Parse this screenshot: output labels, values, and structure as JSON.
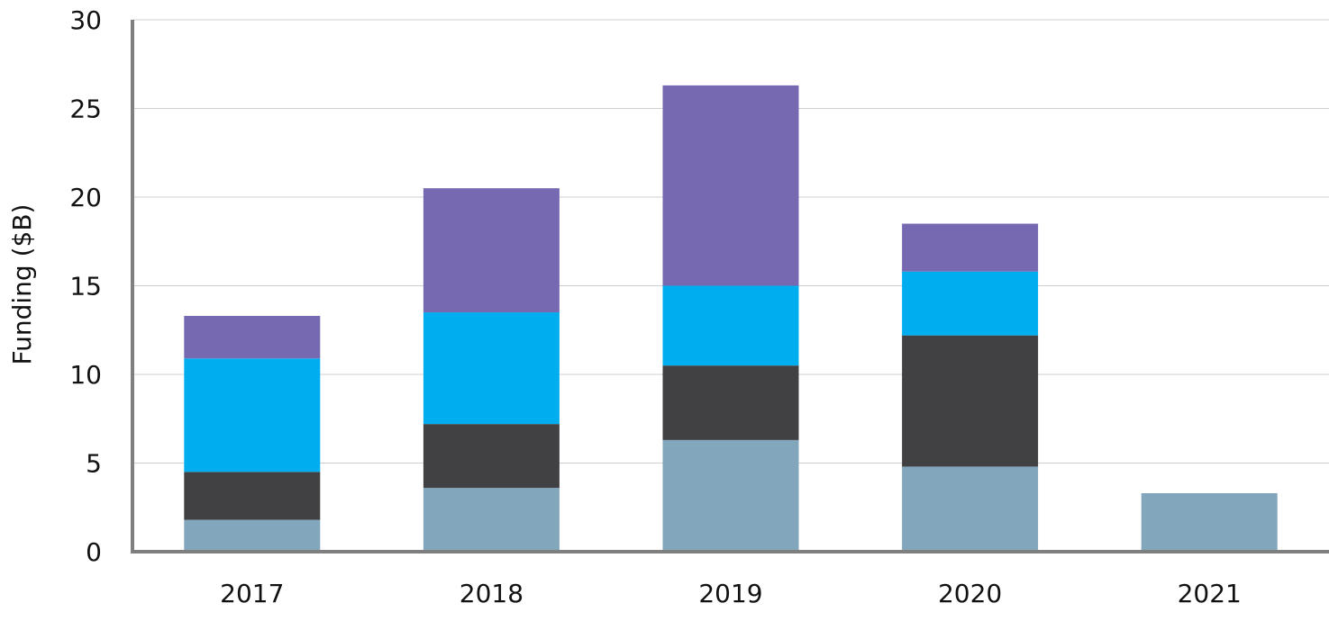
{
  "chart_data": {
    "type": "bar",
    "stacked": true,
    "title": "",
    "xlabel": "",
    "ylabel": "Funding ($B)",
    "ylim": [
      0,
      30
    ],
    "yticks": [
      0,
      5,
      10,
      15,
      20,
      25,
      30
    ],
    "grid": true,
    "legend": "none",
    "categories": [
      "2017",
      "2018",
      "2019",
      "2020",
      "2021"
    ],
    "series": [
      {
        "color": "#82a6bc",
        "values": [
          1.8,
          3.6,
          6.3,
          4.8,
          3.3
        ]
      },
      {
        "color": "#414042",
        "values": [
          2.7,
          3.6,
          4.2,
          7.4,
          0
        ]
      },
      {
        "color": "#00adee",
        "values": [
          6.4,
          6.3,
          4.5,
          3.6,
          0
        ]
      },
      {
        "color": "#7669b2",
        "values": [
          2.4,
          7.0,
          11.3,
          2.7,
          0
        ]
      }
    ]
  }
}
